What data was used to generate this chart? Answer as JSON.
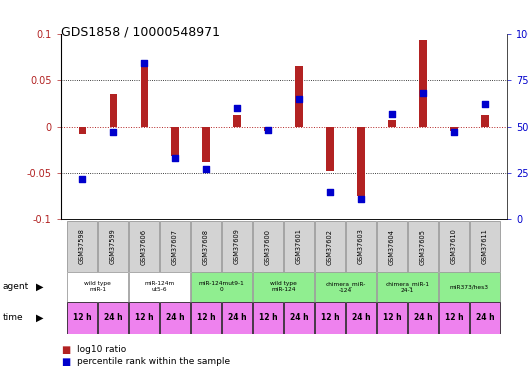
{
  "title": "GDS1858 / 10000548971",
  "samples": [
    "GSM37598",
    "GSM37599",
    "GSM37606",
    "GSM37607",
    "GSM37608",
    "GSM37609",
    "GSM37600",
    "GSM37601",
    "GSM37602",
    "GSM37603",
    "GSM37604",
    "GSM37605",
    "GSM37610",
    "GSM37611"
  ],
  "log10_ratio": [
    -0.008,
    0.035,
    0.065,
    -0.032,
    -0.038,
    0.012,
    -0.005,
    0.065,
    -0.048,
    -0.075,
    0.007,
    0.093,
    -0.005,
    0.012
  ],
  "percentile_rank": [
    22,
    47,
    84,
    33,
    27,
    60,
    48,
    65,
    15,
    11,
    57,
    68,
    47,
    62
  ],
  "agents": [
    {
      "label": "wild type\nmiR-1",
      "span": [
        0,
        2
      ],
      "color": "#ffffff"
    },
    {
      "label": "miR-124m\nut5-6",
      "span": [
        2,
        4
      ],
      "color": "#ffffff"
    },
    {
      "label": "miR-124mut9-1\n0",
      "span": [
        4,
        6
      ],
      "color": "#90ee90"
    },
    {
      "label": "wild type\nmiR-124",
      "span": [
        6,
        8
      ],
      "color": "#90ee90"
    },
    {
      "label": "chimera_miR-\n-124",
      "span": [
        8,
        10
      ],
      "color": "#90ee90"
    },
    {
      "label": "chimera_miR-1\n24-1",
      "span": [
        10,
        12
      ],
      "color": "#90ee90"
    },
    {
      "label": "miR373/hes3",
      "span": [
        12,
        14
      ],
      "color": "#90ee90"
    }
  ],
  "time_labels": [
    "12 h",
    "24 h",
    "12 h",
    "24 h",
    "12 h",
    "24 h",
    "12 h",
    "24 h",
    "12 h",
    "24 h",
    "12 h",
    "24 h",
    "12 h",
    "24 h"
  ],
  "ylim_left": [
    -0.1,
    0.1
  ],
  "ylim_right": [
    0,
    100
  ],
  "yticks_left": [
    -0.1,
    -0.05,
    0.0,
    0.05,
    0.1
  ],
  "yticks_right": [
    0,
    25,
    50,
    75,
    100
  ],
  "ytick_labels_right": [
    "0",
    "25",
    "50",
    "75",
    "100%"
  ],
  "red_color": "#b22222",
  "blue_color": "#0000cc",
  "bar_width": 0.25,
  "dot_size": 18,
  "sample_bg_color": "#d3d3d3",
  "agent_white_color": "#ffffff",
  "agent_green_color": "#90ee90",
  "time_bg_color": "#ee82ee",
  "legend_red": "log10 ratio",
  "legend_blue": "percentile rank within the sample",
  "title_fontsize": 9
}
